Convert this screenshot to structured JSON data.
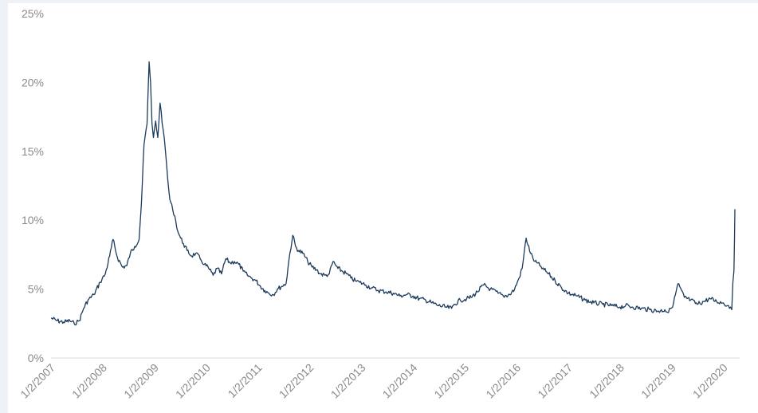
{
  "chart_data": {
    "type": "line",
    "title": "",
    "xlabel": "",
    "ylabel": "",
    "ylim": [
      0,
      25
    ],
    "y_ticks": [
      {
        "value": 0,
        "label": "0%"
      },
      {
        "value": 5,
        "label": "5%"
      },
      {
        "value": 10,
        "label": "10%"
      },
      {
        "value": 15,
        "label": "15%"
      },
      {
        "value": 20,
        "label": "20%"
      },
      {
        "value": 25,
        "label": "25%"
      }
    ],
    "x_ticks": [
      {
        "value": "2007-01-02",
        "label": "1/2/2007"
      },
      {
        "value": "2008-01-02",
        "label": "1/2/2008"
      },
      {
        "value": "2009-01-02",
        "label": "1/2/2009"
      },
      {
        "value": "2010-01-02",
        "label": "1/2/2010"
      },
      {
        "value": "2011-01-02",
        "label": "1/2/2011"
      },
      {
        "value": "2012-01-02",
        "label": "1/2/2012"
      },
      {
        "value": "2013-01-02",
        "label": "1/2/2013"
      },
      {
        "value": "2014-01-02",
        "label": "1/2/2014"
      },
      {
        "value": "2015-01-02",
        "label": "1/2/2015"
      },
      {
        "value": "2016-01-02",
        "label": "1/2/2016"
      },
      {
        "value": "2017-01-02",
        "label": "1/2/2017"
      },
      {
        "value": "2018-01-02",
        "label": "1/2/2018"
      },
      {
        "value": "2019-01-02",
        "label": "1/2/2019"
      },
      {
        "value": "2020-01-02",
        "label": "1/2/2020"
      }
    ],
    "grid": false,
    "line_color": "#1b3a5c",
    "series": [
      {
        "x": [
          "2007-01-02",
          "2007-02-15",
          "2007-04-01",
          "2007-05-15",
          "2007-06-15",
          "2007-07-20",
          "2007-08-20",
          "2007-09-20",
          "2007-11-01",
          "2007-12-15",
          "2008-01-20",
          "2008-02-20",
          "2008-03-15",
          "2008-04-15",
          "2008-05-20",
          "2008-06-20",
          "2008-07-15",
          "2008-08-15",
          "2008-09-15",
          "2008-10-01",
          "2008-10-20",
          "2008-11-10",
          "2008-11-25",
          "2008-12-05",
          "2008-12-15",
          "2008-12-25",
          "2009-01-10",
          "2009-01-25",
          "2009-02-10",
          "2009-03-05",
          "2009-03-20",
          "2009-04-05",
          "2009-04-20",
          "2009-05-10",
          "2009-05-25",
          "2009-06-15",
          "2009-07-05",
          "2009-07-25",
          "2009-08-20",
          "2009-09-20",
          "2009-10-20",
          "2009-11-20",
          "2009-12-20",
          "2010-01-20",
          "2010-02-20",
          "2010-03-20",
          "2010-04-20",
          "2010-05-20",
          "2010-06-20",
          "2010-07-20",
          "2010-08-20",
          "2010-09-20",
          "2010-10-20",
          "2010-11-20",
          "2010-12-20",
          "2011-01-20",
          "2011-02-20",
          "2011-03-20",
          "2011-04-20",
          "2011-05-20",
          "2011-06-20",
          "2011-07-20",
          "2011-08-10",
          "2011-09-05",
          "2011-09-25",
          "2011-10-15",
          "2011-11-15",
          "2011-12-20",
          "2012-01-20",
          "2012-02-20",
          "2012-03-20",
          "2012-04-20",
          "2012-05-20",
          "2012-06-15",
          "2012-07-20",
          "2012-08-20",
          "2012-09-20",
          "2012-10-20",
          "2012-11-20",
          "2012-12-20",
          "2013-02-01",
          "2013-03-15",
          "2013-05-01",
          "2013-06-25",
          "2013-08-15",
          "2013-10-01",
          "2013-11-15",
          "2014-01-02",
          "2014-02-15",
          "2014-04-01",
          "2014-05-15",
          "2014-07-01",
          "2014-08-15",
          "2014-10-01",
          "2014-10-20",
          "2014-12-01",
          "2015-01-15",
          "2015-02-15",
          "2015-04-01",
          "2015-05-15",
          "2015-07-01",
          "2015-08-25",
          "2015-10-01",
          "2015-11-15",
          "2015-12-20",
          "2016-01-20",
          "2016-02-11",
          "2016-03-10",
          "2016-04-10",
          "2016-05-10",
          "2016-06-15",
          "2016-07-15",
          "2016-08-15",
          "2016-10-01",
          "2016-11-15",
          "2017-01-02",
          "2017-03-01",
          "2017-05-01",
          "2017-07-01",
          "2017-09-01",
          "2017-11-01",
          "2018-01-02",
          "2018-02-10",
          "2018-04-01",
          "2018-06-01",
          "2018-08-01",
          "2018-10-01",
          "2018-11-15",
          "2018-12-10",
          "2018-12-26",
          "2019-01-15",
          "2019-02-15",
          "2019-04-01",
          "2019-05-15",
          "2019-07-01",
          "2019-08-15",
          "2019-10-01",
          "2019-11-15",
          "2020-01-02",
          "2020-01-31",
          "2020-02-21",
          "2020-03-01",
          "2020-03-09",
          "2020-03-16",
          "2020-03-20",
          "2020-03-23"
        ],
        "y": [
          2.9,
          2.7,
          2.6,
          2.7,
          2.5,
          2.7,
          3.6,
          4.2,
          4.6,
          5.5,
          6.1,
          7.4,
          8.6,
          7.3,
          6.6,
          6.7,
          7.6,
          8.1,
          8.6,
          11.2,
          15.5,
          17.0,
          21.5,
          20.0,
          17.0,
          16.0,
          17.2,
          16.0,
          18.5,
          16.5,
          15.0,
          13.0,
          11.5,
          10.8,
          10.3,
          9.2,
          8.7,
          8.3,
          7.8,
          7.4,
          7.6,
          7.2,
          6.8,
          6.5,
          6.0,
          6.5,
          6.1,
          7.2,
          6.9,
          7.0,
          6.8,
          6.3,
          6.0,
          5.8,
          5.6,
          5.2,
          4.9,
          4.7,
          4.6,
          5.0,
          5.2,
          5.4,
          7.2,
          8.9,
          8.1,
          7.8,
          7.6,
          7.0,
          6.6,
          6.4,
          6.1,
          6.0,
          6.1,
          7.0,
          6.5,
          6.3,
          6.1,
          5.8,
          5.6,
          5.5,
          5.3,
          5.1,
          4.9,
          4.8,
          4.7,
          4.5,
          4.6,
          4.5,
          4.3,
          4.2,
          4.0,
          3.8,
          3.7,
          3.6,
          3.9,
          4.2,
          4.3,
          4.4,
          4.8,
          5.3,
          5.0,
          4.7,
          4.5,
          4.6,
          5.0,
          5.8,
          6.5,
          8.7,
          7.6,
          7.0,
          6.7,
          6.4,
          6.1,
          5.6,
          5.1,
          4.7,
          4.5,
          4.2,
          4.0,
          3.9,
          3.8,
          3.7,
          3.8,
          3.7,
          3.6,
          3.5,
          3.4,
          3.5,
          3.3,
          3.6,
          4.0,
          5.4,
          4.4,
          4.2,
          3.9,
          4.1,
          4.3,
          4.1,
          4.0,
          3.8,
          3.7,
          3.5,
          5.5,
          6.3,
          8.6,
          10.8
        ]
      }
    ]
  }
}
